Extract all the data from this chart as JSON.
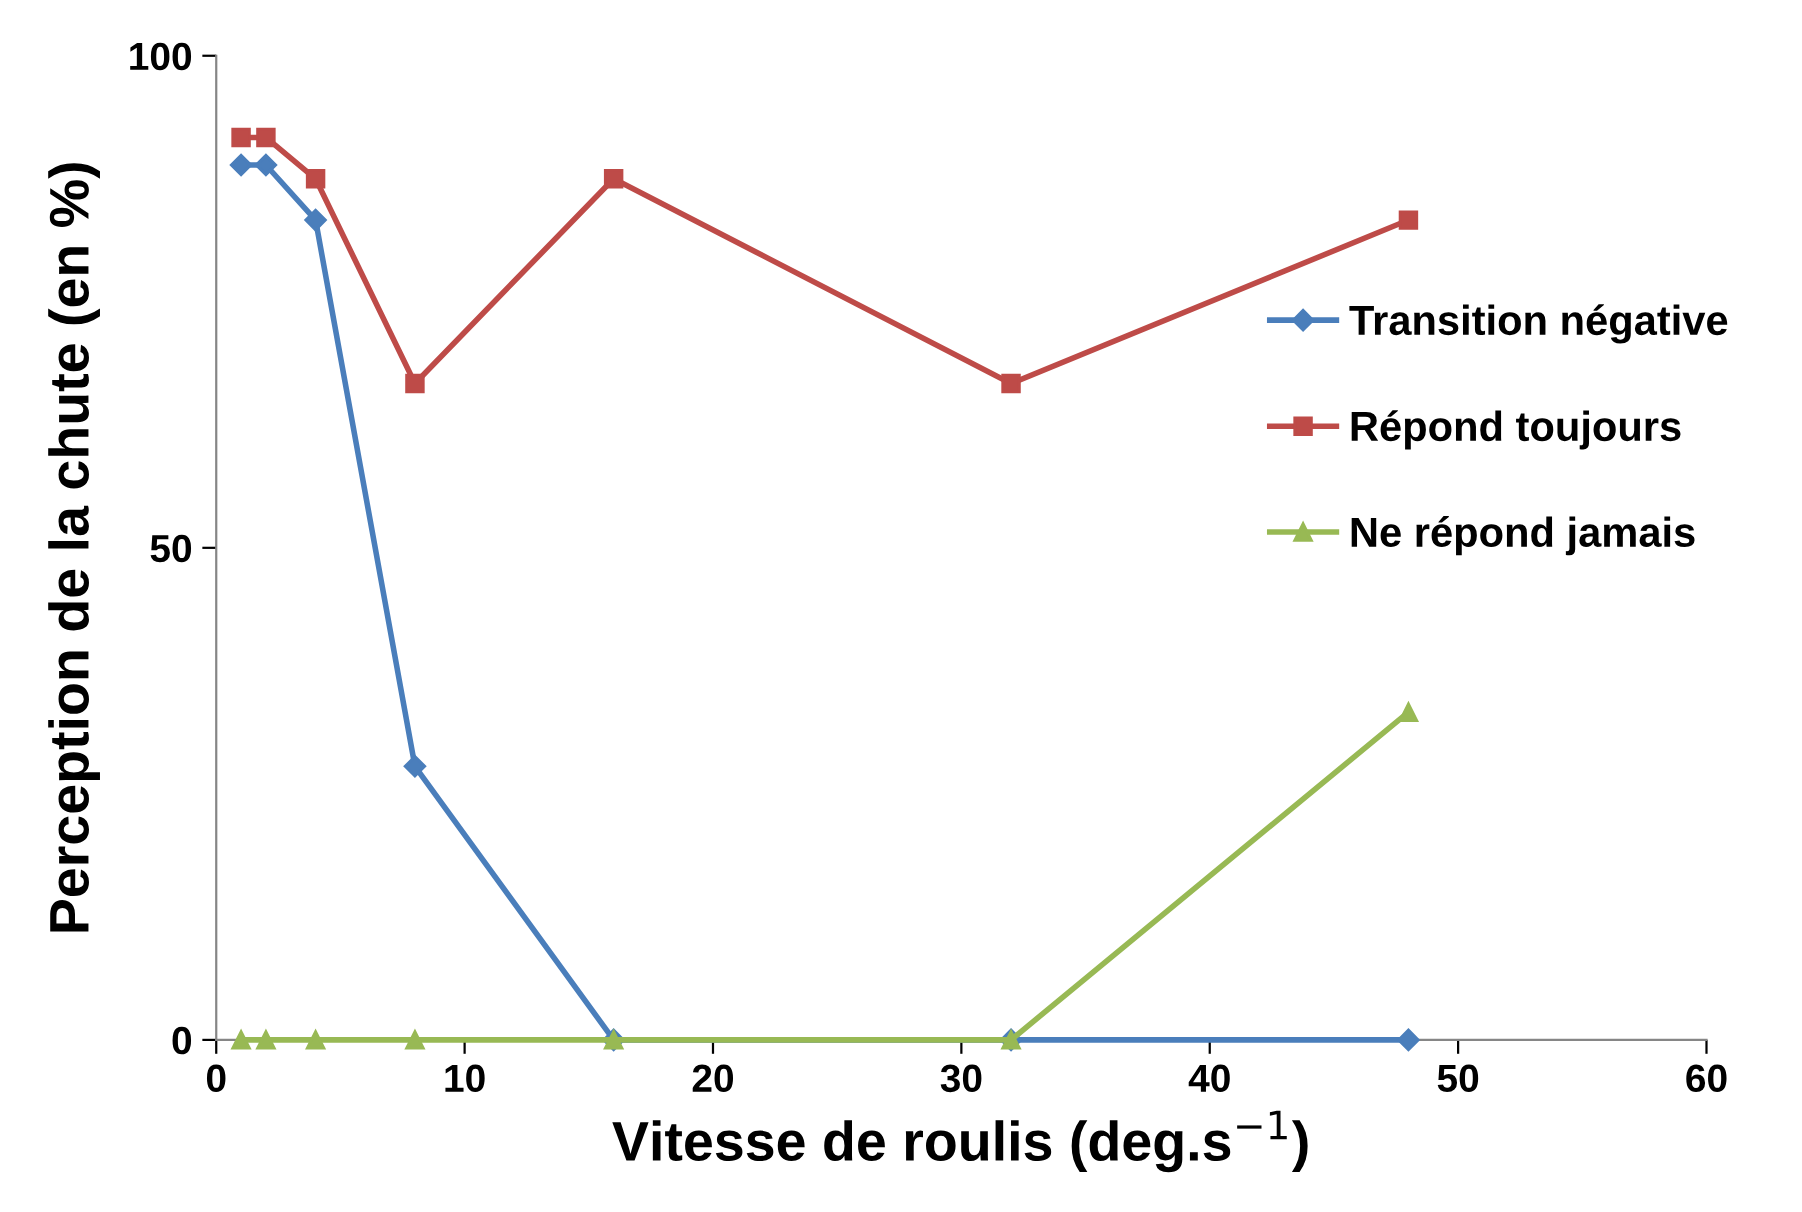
{
  "chart_data": {
    "type": "line",
    "xlabel": "Vitesse de roulis (deg.s$^{−1}$)",
    "ylabel": "Perception de la chute (en %)",
    "x": [
      1,
      2,
      4,
      8,
      16,
      32,
      48
    ],
    "series": [
      {
        "name": "Transition négative",
        "color": "#4a7ebb",
        "marker": "diamond",
        "values": [
          88.9,
          88.9,
          83.3,
          27.8,
          0,
          0,
          0
        ]
      },
      {
        "name": "Répond toujours",
        "color": "#be4b48",
        "marker": "square",
        "values": [
          91.7,
          91.7,
          87.5,
          66.7,
          87.5,
          66.7,
          83.3
        ]
      },
      {
        "name": "Ne répond jamais",
        "color": "#98b954",
        "marker": "triangle",
        "values": [
          0,
          0,
          0,
          0,
          0,
          0,
          33.3
        ]
      }
    ],
    "xlim": [
      0,
      60
    ],
    "xticks": [
      0,
      10,
      20,
      30,
      40,
      50,
      60
    ],
    "ylim": [
      0,
      100
    ],
    "yticks": [
      0,
      50,
      100
    ],
    "grid": false,
    "legend": "right",
    "line_style": "solid"
  }
}
